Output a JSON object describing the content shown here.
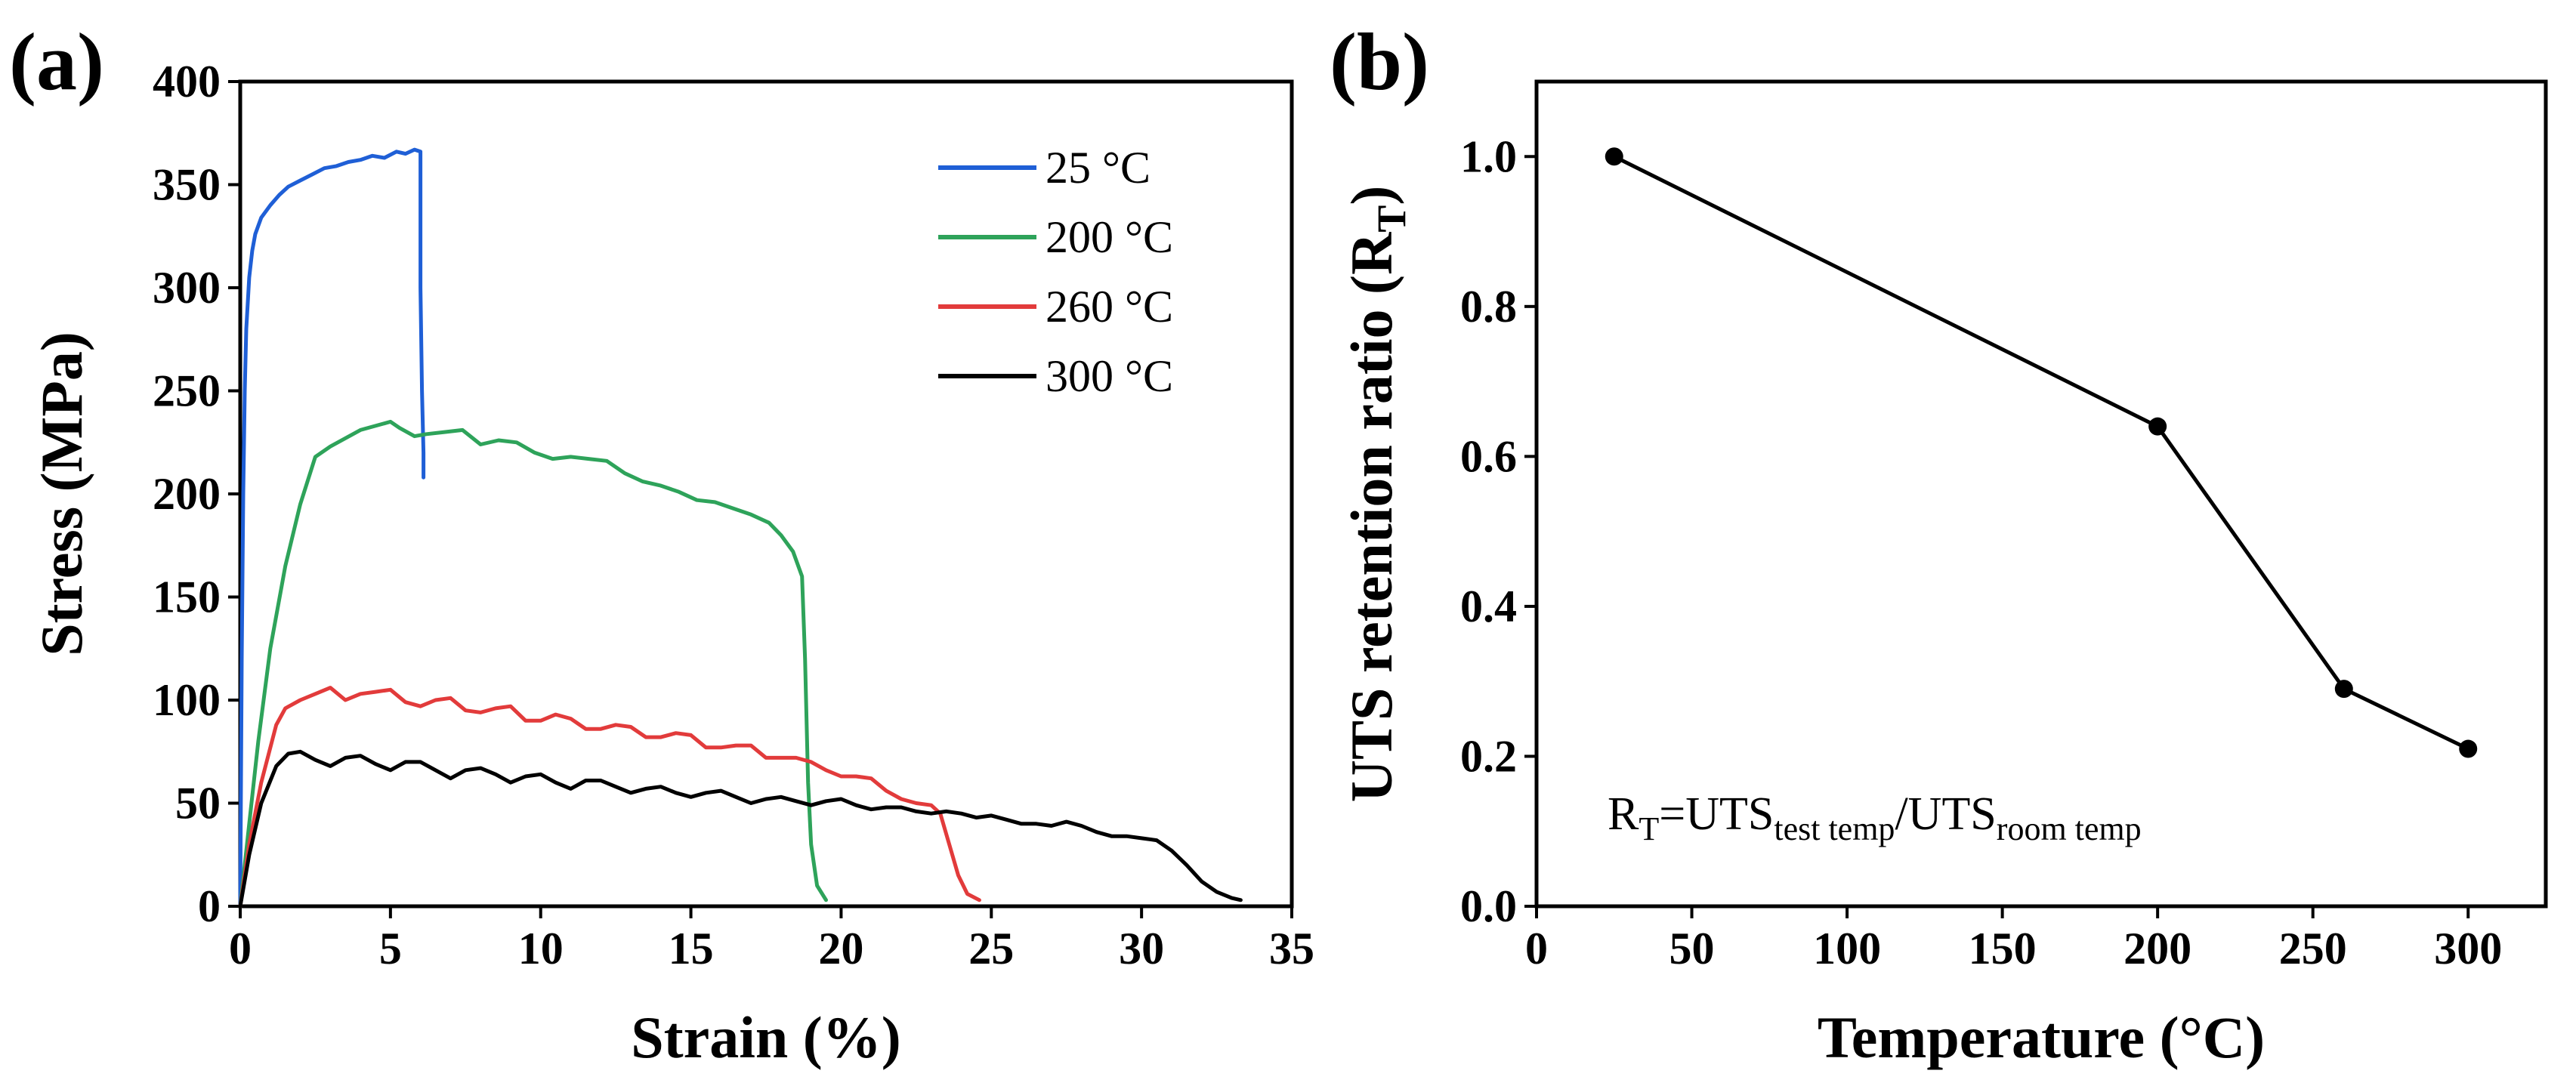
{
  "chart_data": [
    {
      "panel_label": "(a)",
      "type": "line",
      "xlabel": "Strain (%)",
      "ylabel": "Stress (MPa)",
      "xlim": [
        0,
        35
      ],
      "ylim": [
        0,
        400
      ],
      "xticks": [
        0,
        5,
        10,
        15,
        20,
        25,
        30,
        35
      ],
      "yticks": [
        0,
        50,
        100,
        150,
        200,
        250,
        300,
        350,
        400
      ],
      "legend_position": "top-right",
      "series": [
        {
          "name": "25 °C",
          "color": "#1f5fd6",
          "x": [
            0,
            0.05,
            0.1,
            0.15,
            0.2,
            0.3,
            0.4,
            0.5,
            0.7,
            1.0,
            1.3,
            1.6,
            2.0,
            2.4,
            2.8,
            3.2,
            3.6,
            4.0,
            4.4,
            4.8,
            5.2,
            5.5,
            5.8,
            6.0,
            6.0,
            6.05,
            6.1,
            6.1
          ],
          "y": [
            0,
            120,
            200,
            250,
            280,
            305,
            318,
            326,
            334,
            340,
            345,
            349,
            352,
            355,
            358,
            359,
            361,
            362,
            364,
            363,
            366,
            365,
            367,
            366,
            300,
            250,
            220,
            208
          ]
        },
        {
          "name": "200 °C",
          "color": "#2ea35a",
          "x": [
            0,
            0.3,
            0.6,
            1.0,
            1.5,
            2.0,
            2.5,
            3.0,
            3.5,
            4.0,
            4.5,
            5.0,
            5.3,
            5.8,
            6.2,
            6.8,
            7.4,
            8.0,
            8.6,
            9.2,
            9.8,
            10.4,
            11.0,
            11.6,
            12.2,
            12.8,
            13.4,
            14.0,
            14.6,
            15.2,
            15.8,
            16.4,
            17.0,
            17.6,
            18.0,
            18.4,
            18.7,
            18.8,
            18.9,
            19.0,
            19.2,
            19.5
          ],
          "y": [
            0,
            40,
            80,
            125,
            165,
            195,
            218,
            223,
            227,
            231,
            233,
            235,
            232,
            228,
            229,
            230,
            231,
            224,
            226,
            225,
            220,
            217,
            218,
            217,
            216,
            210,
            206,
            204,
            201,
            197,
            196,
            193,
            190,
            186,
            180,
            172,
            160,
            120,
            60,
            30,
            10,
            3
          ]
        },
        {
          "name": "260 °C",
          "color": "#e23b3b",
          "x": [
            0,
            0.3,
            0.7,
            1.2,
            1.5,
            2.0,
            2.5,
            3.0,
            3.5,
            4.0,
            4.5,
            5.0,
            5.5,
            6.0,
            6.5,
            7.0,
            7.5,
            8.0,
            8.5,
            9.0,
            9.5,
            10.0,
            10.5,
            11.0,
            11.5,
            12.0,
            12.5,
            13.0,
            13.5,
            14.0,
            14.5,
            15.0,
            15.5,
            16.0,
            16.5,
            17.0,
            17.5,
            18.0,
            18.5,
            19.0,
            19.5,
            20.0,
            20.5,
            21.0,
            21.5,
            22.0,
            22.5,
            23.0,
            23.3,
            23.6,
            23.9,
            24.2,
            24.6
          ],
          "y": [
            0,
            30,
            60,
            88,
            96,
            100,
            103,
            106,
            100,
            103,
            104,
            105,
            99,
            97,
            100,
            101,
            95,
            94,
            96,
            97,
            90,
            90,
            93,
            91,
            86,
            86,
            88,
            87,
            82,
            82,
            84,
            83,
            77,
            77,
            78,
            78,
            72,
            72,
            72,
            70,
            66,
            63,
            63,
            62,
            56,
            52,
            50,
            49,
            45,
            30,
            15,
            6,
            3
          ]
        },
        {
          "name": "300 °C",
          "color": "#000000",
          "x": [
            0,
            0.3,
            0.7,
            1.2,
            1.6,
            2.0,
            2.5,
            3.0,
            3.5,
            4.0,
            4.5,
            5.0,
            5.5,
            6.0,
            6.5,
            7.0,
            7.5,
            8.0,
            8.5,
            9.0,
            9.5,
            10.0,
            10.5,
            11.0,
            11.5,
            12.0,
            12.5,
            13.0,
            13.5,
            14.0,
            14.5,
            15.0,
            15.5,
            16.0,
            16.5,
            17.0,
            17.5,
            18.0,
            18.5,
            19.0,
            19.5,
            20.0,
            20.5,
            21.0,
            21.5,
            22.0,
            22.5,
            23.0,
            23.5,
            24.0,
            24.5,
            25.0,
            25.5,
            26.0,
            26.5,
            27.0,
            27.5,
            28.0,
            28.5,
            29.0,
            29.5,
            30.0,
            30.5,
            31.0,
            31.5,
            32.0,
            32.5,
            33.0,
            33.3
          ],
          "y": [
            0,
            25,
            50,
            68,
            74,
            75,
            71,
            68,
            72,
            73,
            69,
            66,
            70,
            70,
            66,
            62,
            66,
            67,
            64,
            60,
            63,
            64,
            60,
            57,
            61,
            61,
            58,
            55,
            57,
            58,
            55,
            53,
            55,
            56,
            53,
            50,
            52,
            53,
            51,
            49,
            51,
            52,
            49,
            47,
            48,
            48,
            46,
            45,
            46,
            45,
            43,
            44,
            42,
            40,
            40,
            39,
            41,
            39,
            36,
            34,
            34,
            33,
            32,
            27,
            20,
            12,
            7,
            4,
            3
          ]
        }
      ]
    },
    {
      "panel_label": "(b)",
      "type": "line",
      "xlabel": "Temperature (°C)",
      "ylabel_main": "UTS retention ratio (R",
      "ylabel_sub": "T",
      "ylabel_end": ")",
      "xlim": [
        0,
        325
      ],
      "ylim": [
        0,
        1.1
      ],
      "xticks": [
        0,
        50,
        100,
        150,
        200,
        250,
        300
      ],
      "yticks": [
        0.0,
        0.2,
        0.4,
        0.6,
        0.8,
        1.0
      ],
      "ytick_labels": [
        "0.0",
        "0.2",
        "0.4",
        "0.6",
        "0.8",
        "1.0"
      ],
      "series": [
        {
          "name": "R_T",
          "color": "#000000",
          "x": [
            25,
            200,
            260,
            300
          ],
          "y": [
            1.0,
            0.64,
            0.29,
            0.21
          ]
        }
      ],
      "annotation": {
        "r": "R",
        "r_sub": "T",
        "eq": "=UTS",
        "sub1": "test temp",
        "slash": "/UTS",
        "sub2": "room temp"
      }
    }
  ]
}
